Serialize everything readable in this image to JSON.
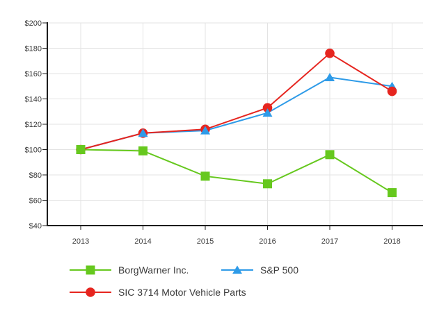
{
  "chart_data": {
    "type": "line",
    "title": "",
    "x": [
      "2013",
      "2014",
      "2015",
      "2016",
      "2017",
      "2018"
    ],
    "series": [
      {
        "name": "BorgWarner Inc.",
        "marker": "square",
        "color": "#66C81E",
        "values": [
          100,
          99,
          79,
          73,
          96,
          66
        ]
      },
      {
        "name": "S&P 500",
        "marker": "triangle",
        "color": "#2E9BE8",
        "values": [
          100,
          113,
          115,
          129,
          157,
          150
        ]
      },
      {
        "name": "SIC 3714 Motor Vehicle Parts",
        "marker": "circle",
        "color": "#E6251F",
        "values": [
          100,
          113,
          116,
          133,
          176,
          146
        ]
      }
    ],
    "xlabel": "",
    "ylabel": "",
    "ylim": [
      40,
      200
    ],
    "y_ticks": {
      "values": [
        200,
        180,
        160,
        140,
        120,
        100,
        80,
        60,
        40
      ],
      "labels": [
        "$200",
        "$180",
        "$160",
        "$140",
        "$120",
        "$100",
        "$80",
        "$60",
        "$40"
      ]
    },
    "grid": true,
    "legend_position": "bottom-left",
    "colors": {
      "gridline": "#e3e3e3",
      "axis": "#1c1c1c",
      "tick_text": "#3a3a3a"
    }
  }
}
